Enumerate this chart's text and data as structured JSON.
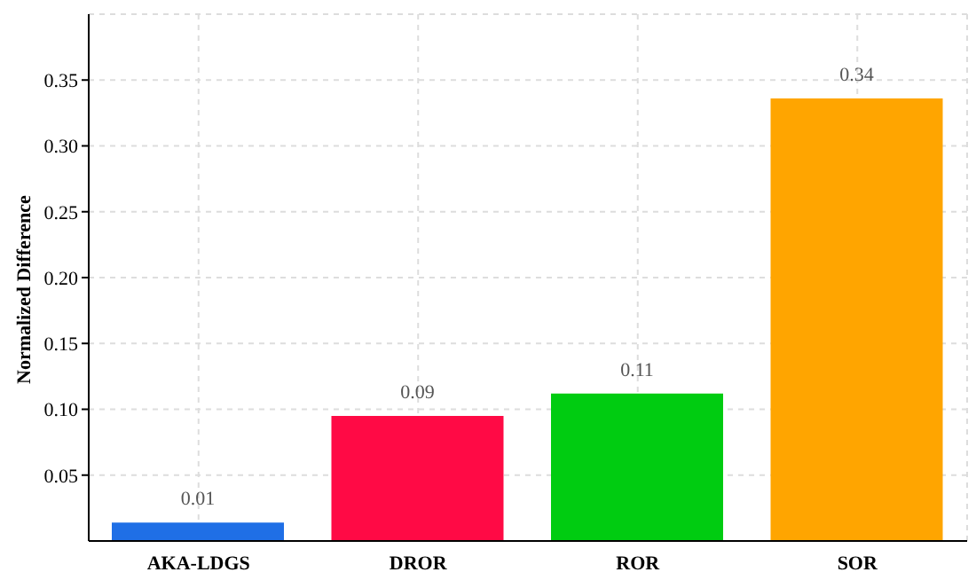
{
  "chart_data": {
    "type": "bar",
    "ylabel": "Normalized Difference",
    "categories": [
      "AKA-LDGS",
      "DROR",
      "ROR",
      "SOR"
    ],
    "values": [
      0.014,
      0.095,
      0.112,
      0.336
    ],
    "colors": [
      "#1f6fe6",
      "#ff0a45",
      "#00cc11",
      "#ffa500"
    ],
    "value_labels": [
      "0.01",
      "0.09",
      "0.11",
      "0.34"
    ],
    "ylim": [
      0,
      0.4
    ],
    "yticks": [
      0.05,
      {
        "value": 0.1,
        "label": "0.10"
      },
      0.15,
      {
        "value": 0.2,
        "label": "0.20"
      },
      0.25,
      {
        "value": 0.3,
        "label": "0.30"
      },
      0.35
    ],
    "grid": true
  }
}
